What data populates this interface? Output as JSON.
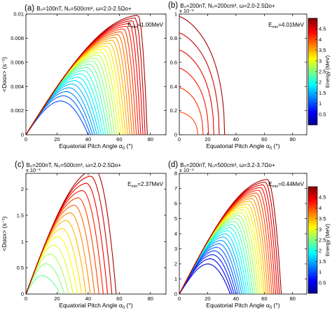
{
  "figure": {
    "xlabel": "Equatorial Pitch Angle α",
    "xlabel_sub": "0",
    "xlabel_unit": " (°)",
    "ylabel": "<Dααx> (s⁻¹)",
    "colorbar_label": "Energy (MeV)",
    "colorbar_ticks": [
      "0.5",
      "1",
      "1.5",
      "2",
      "2.5",
      "3",
      "3.5",
      "4",
      "4.5"
    ],
    "colorbar_range": [
      0,
      5
    ],
    "colormap": [
      "#00008f",
      "#0000ff",
      "#00ffff",
      "#ffff00",
      "#ff0000",
      "#800000"
    ]
  },
  "chart_data": [
    {
      "type": "line",
      "label": "(a)",
      "params": "B₀=100nT, N₀=500cm³, ω=2.0-2.5Ωo+",
      "emin_label": "E",
      "emin_sub": "min",
      "emin_value": "=1.00MeV",
      "xlim": [
        0,
        90
      ],
      "ylim": [
        0,
        0.01
      ],
      "xticks": [
        "0",
        "20",
        "40",
        "60",
        "80"
      ],
      "xtick_values": [
        0,
        20,
        40,
        60,
        80
      ],
      "yticks": [
        "0",
        "0.002",
        "0.004",
        "0.006",
        "0.008",
        "0.01"
      ],
      "ytick_values": [
        0,
        0.002,
        0.004,
        0.006,
        0.008,
        0.01
      ],
      "exponent": "",
      "show_xlabel": true,
      "show_ylabel": true,
      "energy_range": [
        1.0,
        4.8
      ],
      "n_curves": 28,
      "peak_x_range": [
        22,
        72
      ],
      "peak_y_range": [
        0.0028,
        0.0099
      ],
      "cutoff_range": [
        40,
        78
      ],
      "shape": "skew"
    },
    {
      "type": "line",
      "label": "(b)",
      "params": "B₀=200nT, N₀=200cm³, ω=2.0-2.5Ωo+",
      "emin_label": "E",
      "emin_sub": "min",
      "emin_value": "=4.01MeV",
      "xlim": [
        0,
        90
      ],
      "ylim": [
        0,
        1.0
      ],
      "xticks": [
        "0",
        "20",
        "40",
        "60",
        "80"
      ],
      "xtick_values": [
        0,
        20,
        40,
        60,
        80
      ],
      "yticks": [
        "0",
        "0.2",
        "0.4",
        "0.6",
        "0.8",
        "1"
      ],
      "ytick_values": [
        0,
        0.2,
        0.4,
        0.6,
        0.8,
        1.0
      ],
      "exponent": "x 10⁻³",
      "show_xlabel": true,
      "show_ylabel": false,
      "energy_range": [
        4.01,
        4.8
      ],
      "n_curves": 6,
      "peak_x_range": [
        1,
        7
      ],
      "peak_y_range": [
        0.19,
        0.98
      ],
      "cutoff_range": [
        13,
        32
      ],
      "shape": "arc"
    },
    {
      "type": "line",
      "label": "(c)",
      "params": "B₀=200nT, N₀=500cm³, ω=2.0-2.5Ωo+",
      "emin_label": "E",
      "emin_sub": "min",
      "emin_value": "=2.37MeV",
      "xlim": [
        0,
        90
      ],
      "ylim": [
        0,
        2.3
      ],
      "xticks": [
        "0",
        "20",
        "40",
        "60",
        "80"
      ],
      "xtick_values": [
        0,
        20,
        40,
        60,
        80
      ],
      "yticks": [
        "0",
        "0.5",
        "1",
        "1.5",
        "2"
      ],
      "ytick_values": [
        0,
        0.5,
        1.0,
        1.5,
        2.0
      ],
      "exponent": "x 10⁻³",
      "show_xlabel": true,
      "show_ylabel": true,
      "energy_range": [
        2.37,
        4.8
      ],
      "n_curves": 14,
      "peak_x_range": [
        10,
        44
      ],
      "peak_y_range": [
        0.35,
        2.38
      ],
      "cutoff_range": [
        22,
        58
      ],
      "shape": "skew"
    },
    {
      "type": "line",
      "label": "(d)",
      "params": "B₀=200nT, N₀=500cm³, ω=3.2-3.7Ωo+",
      "emin_label": "E",
      "emin_sub": "min",
      "emin_value": "=0.44MeV",
      "xlim": [
        0,
        90
      ],
      "ylim": [
        0,
        8
      ],
      "xticks": [
        "0",
        "20",
        "40",
        "60",
        "80"
      ],
      "xtick_values": [
        0,
        20,
        40,
        60,
        80
      ],
      "yticks": [
        "0",
        "1",
        "2",
        "3",
        "4",
        "5",
        "6",
        "7",
        "8"
      ],
      "ytick_values": [
        0,
        1,
        2,
        3,
        4,
        5,
        6,
        7,
        8
      ],
      "exponent": "x 10⁻³",
      "show_xlabel": true,
      "show_ylabel": false,
      "energy_range": [
        0.44,
        4.8
      ],
      "n_curves": 28,
      "peak_x_range": [
        20,
        62
      ],
      "peak_y_range": [
        2.0,
        7.6
      ],
      "cutoff_range": [
        36,
        72
      ],
      "shape": "skew"
    }
  ]
}
